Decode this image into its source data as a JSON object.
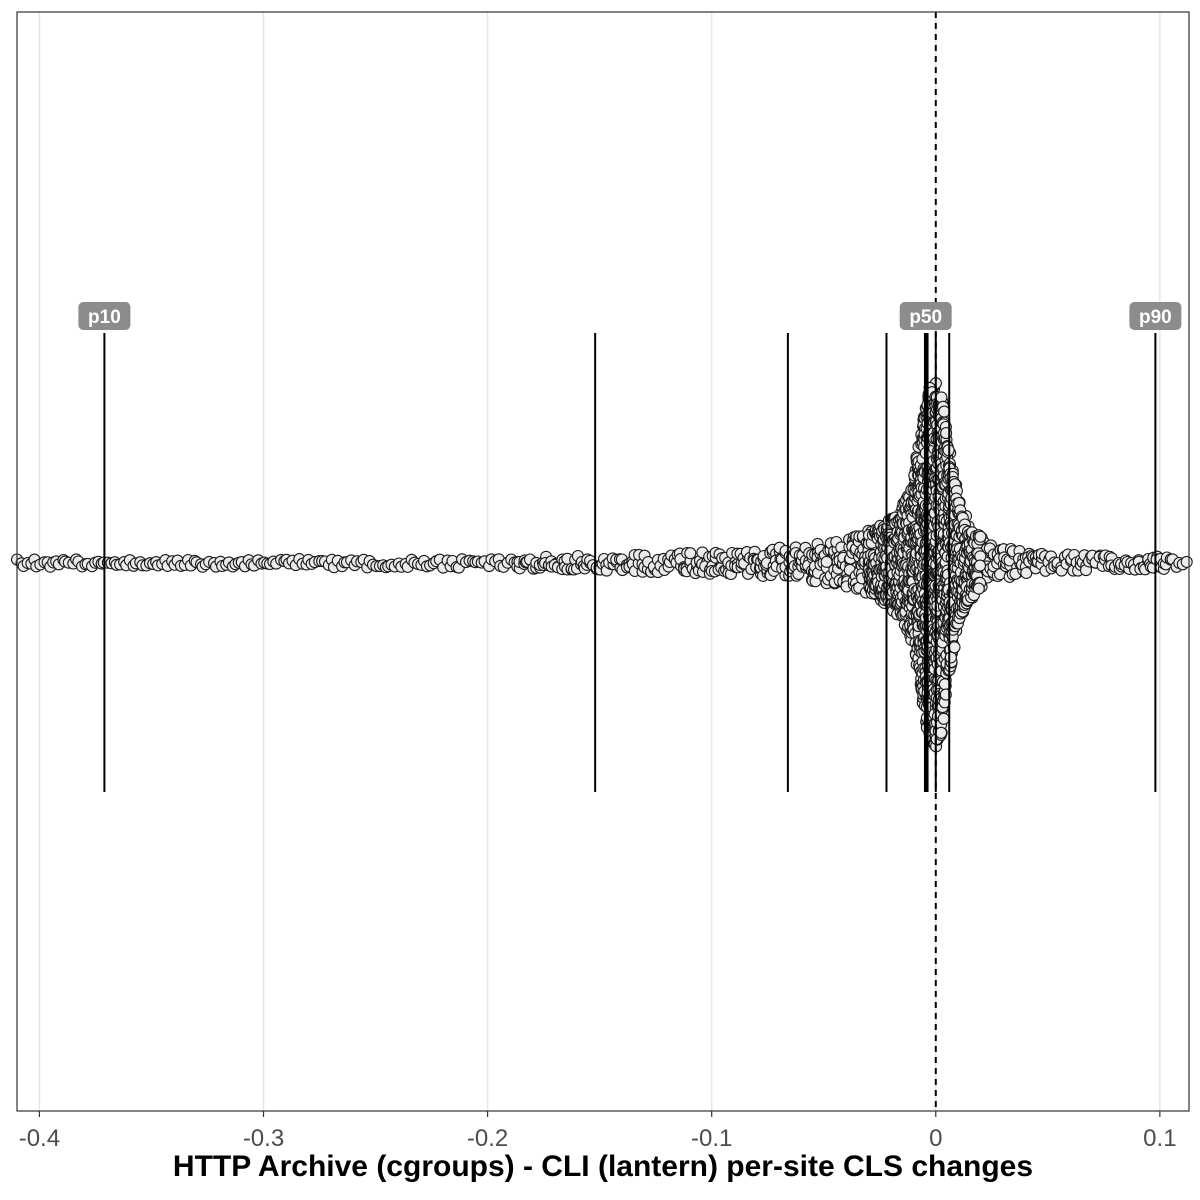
{
  "chart_data": {
    "type": "scatter",
    "subtype": "beeswarm",
    "title": "",
    "xlabel": "HTTP Archive (cgroups) - CLI (lantern) per-site CLS changes",
    "ylabel": "",
    "xlim": [
      -0.41,
      0.113
    ],
    "x_ticks": [
      -0.4,
      -0.3,
      -0.2,
      -0.1,
      0,
      0.1
    ],
    "x_tick_labels": [
      "-0.4",
      "-0.3",
      "-0.2",
      "-0.1",
      "0",
      "0.1"
    ],
    "grid": "vertical major lines",
    "reference_line": {
      "x": 0,
      "style": "dashed"
    },
    "percentile_lines": [
      {
        "x": -0.371,
        "label": "p10"
      },
      {
        "x": -0.152,
        "label": ""
      },
      {
        "x": -0.066,
        "label": ""
      },
      {
        "x": -0.022,
        "label": ""
      },
      {
        "x": -0.0045,
        "label": "p50"
      },
      {
        "x": -0.004,
        "label": ""
      },
      {
        "x": 0,
        "label": ""
      },
      {
        "x": 0.006,
        "label": ""
      },
      {
        "x": 0.098,
        "label": "p90"
      }
    ],
    "distribution_density": [
      {
        "x": -0.41,
        "spread": 0.02
      },
      {
        "x": -0.3,
        "spread": 0.02
      },
      {
        "x": -0.2,
        "spread": 0.03
      },
      {
        "x": -0.15,
        "spread": 0.04
      },
      {
        "x": -0.1,
        "spread": 0.06
      },
      {
        "x": -0.06,
        "spread": 0.09
      },
      {
        "x": -0.04,
        "spread": 0.13
      },
      {
        "x": -0.025,
        "spread": 0.2
      },
      {
        "x": -0.015,
        "spread": 0.3
      },
      {
        "x": -0.01,
        "spread": 0.45
      },
      {
        "x": -0.006,
        "spread": 0.75
      },
      {
        "x": -0.003,
        "spread": 0.95
      },
      {
        "x": 0,
        "spread": 1.0
      },
      {
        "x": 0.003,
        "spread": 0.9
      },
      {
        "x": 0.006,
        "spread": 0.6
      },
      {
        "x": 0.01,
        "spread": 0.35
      },
      {
        "x": 0.015,
        "spread": 0.2
      },
      {
        "x": 0.025,
        "spread": 0.09
      },
      {
        "x": 0.05,
        "spread": 0.05
      },
      {
        "x": 0.08,
        "spread": 0.04
      },
      {
        "x": 0.113,
        "spread": 0.03
      }
    ],
    "point_style": {
      "fill": "#ebebeb",
      "stroke": "#1a1a1a"
    },
    "label_style": {
      "fill": "#8c8c8c",
      "text": "#ffffff"
    }
  }
}
